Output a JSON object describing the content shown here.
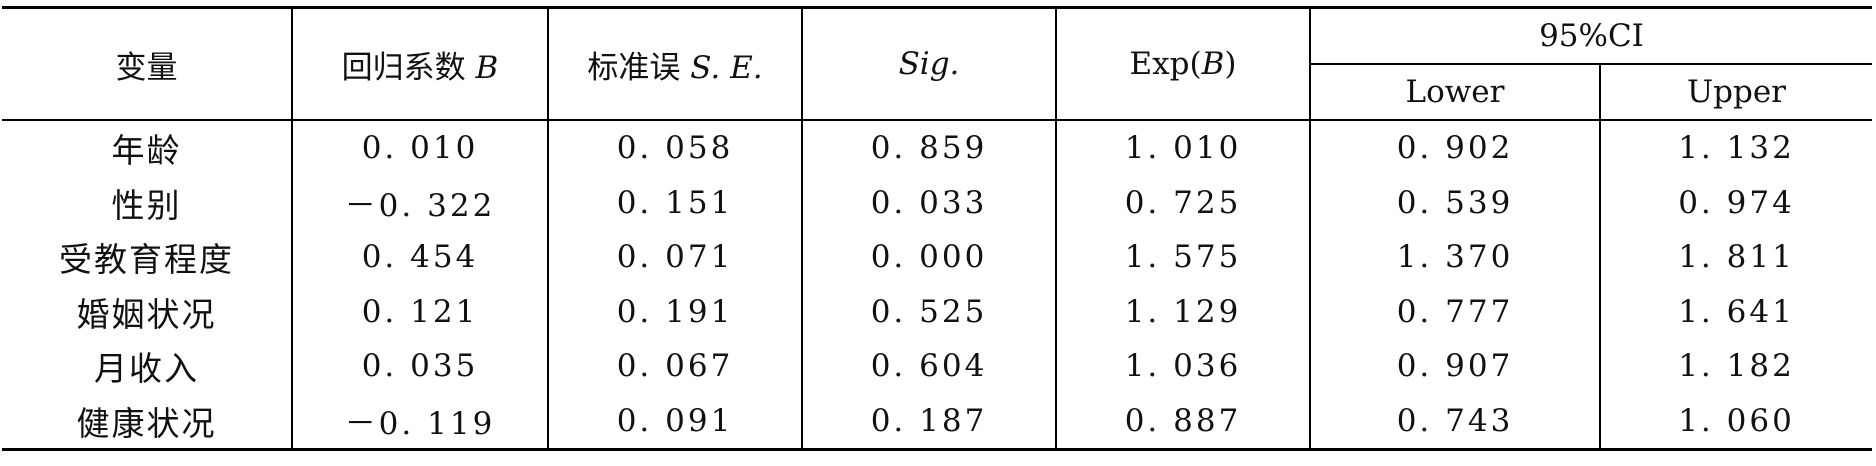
{
  "table": {
    "headers": {
      "variable": "变量",
      "coef_prefix": "回归系数 ",
      "coef_symbol": "B",
      "se_prefix": "标准误 ",
      "se_symbol": "S. E.",
      "sig": "Sig.",
      "exp_prefix": "Exp(",
      "exp_symbol": "B",
      "exp_suffix": ")",
      "ci": "95%CI",
      "lower": "Lower",
      "upper": "Upper"
    },
    "rows": [
      {
        "variable": "年龄",
        "b": "0. 010",
        "se": "0. 058",
        "sig": "0. 859",
        "exp": "1. 010",
        "lower": "0. 902",
        "upper": "1. 132"
      },
      {
        "variable": "性别",
        "b": "－0. 322",
        "se": "0. 151",
        "sig": "0. 033",
        "exp": "0. 725",
        "lower": "0. 539",
        "upper": "0. 974"
      },
      {
        "variable": "受教育程度",
        "b": "0. 454",
        "se": "0. 071",
        "sig": "0. 000",
        "exp": "1. 575",
        "lower": "1. 370",
        "upper": "1. 811"
      },
      {
        "variable": "婚姻状况",
        "b": "0. 121",
        "se": "0. 191",
        "sig": "0. 525",
        "exp": "1. 129",
        "lower": "0. 777",
        "upper": "1. 641"
      },
      {
        "variable": "月收入",
        "b": "0. 035",
        "se": "0. 067",
        "sig": "0. 604",
        "exp": "1. 036",
        "lower": "0. 907",
        "upper": "1. 182"
      },
      {
        "variable": "健康状况",
        "b": "－0. 119",
        "se": "0. 091",
        "sig": "0. 187",
        "exp": "0. 887",
        "lower": "0. 743",
        "upper": "1. 060"
      }
    ]
  }
}
